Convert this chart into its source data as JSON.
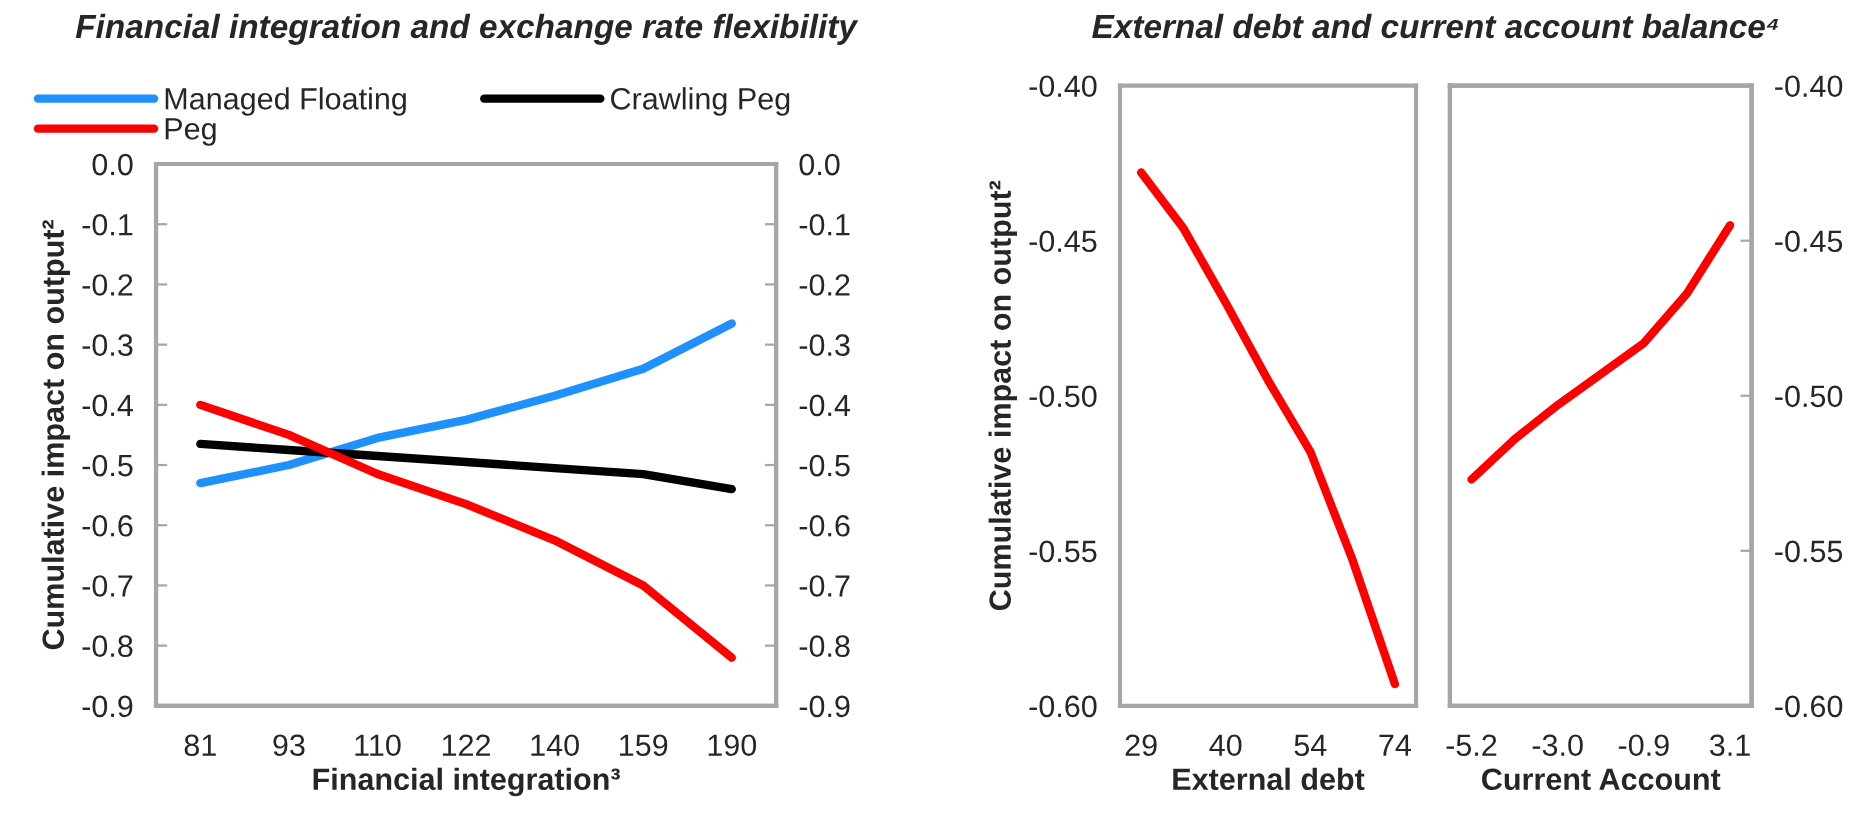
{
  "chart_data": [
    {
      "type": "line",
      "title": "Financial integration and exchange rate flexibility",
      "xlabel": "Financial integration³",
      "ylabel": "Cumulative impact on output²",
      "categories": [
        "81",
        "93",
        "110",
        "122",
        "140",
        "159",
        "190"
      ],
      "series": [
        {
          "name": "Managed Floating",
          "color": "#1e90ff",
          "values": [
            -0.53,
            -0.5,
            -0.455,
            -0.425,
            -0.385,
            -0.34,
            -0.265
          ]
        },
        {
          "name": "Crawling Peg",
          "color": "#000000",
          "values": [
            -0.465,
            -0.475,
            -0.485,
            -0.495,
            -0.505,
            -0.515,
            -0.54
          ]
        },
        {
          "name": "Peg",
          "color": "#ff0000",
          "values": [
            -0.4,
            -0.45,
            -0.515,
            -0.565,
            -0.625,
            -0.7,
            -0.82
          ]
        }
      ],
      "ylim": [
        -0.9,
        0.0
      ],
      "yticks": [
        {
          "value": -0.9,
          "label": "-0.9"
        },
        {
          "value": -0.8,
          "label": "-0.8"
        },
        {
          "value": -0.7,
          "label": "-0.7"
        },
        {
          "value": -0.6,
          "label": "-0.6"
        },
        {
          "value": -0.5,
          "label": "-0.5"
        },
        {
          "value": -0.4,
          "label": "-0.4"
        },
        {
          "value": -0.3,
          "label": "-0.3"
        },
        {
          "value": -0.2,
          "label": "-0.2"
        },
        {
          "value": -0.1,
          "label": "-0.1"
        },
        {
          "value": 0.0,
          "label": "0.0"
        }
      ],
      "y2lim": [
        -0.9,
        0.0
      ],
      "y2ticks": [
        {
          "value": -0.9,
          "label": "-0.9"
        },
        {
          "value": -0.8,
          "label": "-0.8"
        },
        {
          "value": -0.7,
          "label": "-0.7"
        },
        {
          "value": -0.6,
          "label": "-0.6"
        },
        {
          "value": -0.5,
          "label": "-0.5"
        },
        {
          "value": -0.4,
          "label": "-0.4"
        },
        {
          "value": -0.3,
          "label": "-0.3"
        },
        {
          "value": -0.2,
          "label": "-0.2"
        },
        {
          "value": -0.1,
          "label": "-0.1"
        },
        {
          "value": 0.0,
          "label": "0.0"
        }
      ],
      "legend": "top",
      "grid": false,
      "marker": "none",
      "line_style": "solid"
    },
    {
      "type": "line",
      "title": "External debt and current account balance⁴",
      "xlabel": "External debt",
      "ylabel": "Cumulative impact on output²",
      "categories": [
        "29",
        null,
        "40",
        null,
        "54",
        null,
        "74"
      ],
      "series": [
        {
          "color": "#ff0000",
          "values": [
            -0.428,
            -0.446,
            -0.47,
            -0.495,
            -0.518,
            -0.553,
            -0.593
          ]
        }
      ],
      "ylim": [
        -0.6,
        -0.4
      ],
      "yticks": [
        {
          "value": -0.6,
          "label": "-0.60"
        },
        {
          "value": -0.55,
          "label": "-0.55"
        },
        {
          "value": -0.5,
          "label": "-0.50"
        },
        {
          "value": -0.45,
          "label": "-0.45"
        },
        {
          "value": -0.4,
          "label": "-0.40"
        }
      ],
      "legend": false,
      "grid": false,
      "marker": "none",
      "line_style": "solid"
    },
    {
      "type": "line",
      "xlabel": "Current Account",
      "categories": [
        "-5.2",
        null,
        "-3.0",
        null,
        "-0.9",
        null,
        "3.1"
      ],
      "series": [
        {
          "color": "#ff0000",
          "axis": "y2",
          "values": [
            -0.527,
            -0.514,
            -0.503,
            -0.493,
            -0.483,
            -0.467,
            -0.445
          ]
        }
      ],
      "y2lim": [
        -0.6,
        -0.4
      ],
      "y2ticks": [
        {
          "value": -0.6,
          "label": "-0.60"
        },
        {
          "value": -0.55,
          "label": "-0.55"
        },
        {
          "value": -0.5,
          "label": "-0.50"
        },
        {
          "value": -0.45,
          "label": "-0.45"
        },
        {
          "value": -0.4,
          "label": "-0.40"
        }
      ],
      "legend": false,
      "grid": false,
      "marker": "none",
      "line_style": "solid"
    }
  ]
}
